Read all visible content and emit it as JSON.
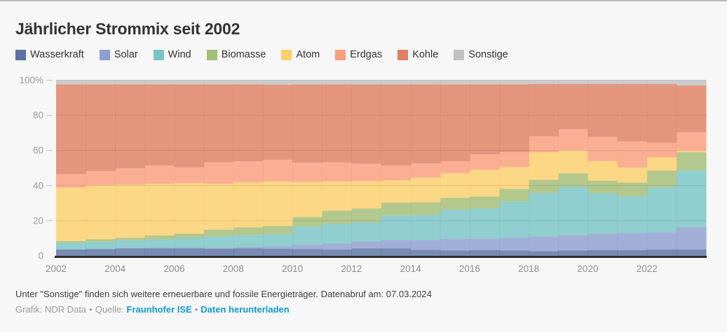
{
  "header": {
    "title": "Jährlicher Strommix seit 2002"
  },
  "footer": {
    "note": "Unter \"Sonstige\" finden sich weitere erneuerbare und fossile Energieträger. Datenabruf am: 07.03.2024",
    "credit": "Grafik: NDR Data",
    "sep": "•",
    "source_label": "Quelle:",
    "source_link": "Fraunhofer ISE",
    "download_link": "Daten herunterladen"
  },
  "colors": {
    "accent_link": "#0f99d4",
    "axis_line": "#2d2d2d",
    "grid": "#d8d8d8",
    "tick_text": "#9b9b9b",
    "card_bg": "#f7f7f7"
  },
  "chart_data": {
    "type": "area",
    "subtype": "stacked-step-100percent",
    "x": [
      2002,
      2003,
      2004,
      2005,
      2006,
      2007,
      2008,
      2009,
      2010,
      2011,
      2012,
      2013,
      2014,
      2015,
      2016,
      2017,
      2018,
      2019,
      2020,
      2021,
      2022,
      2023
    ],
    "x_ticks": [
      "2002",
      "2004",
      "2006",
      "2008",
      "2010",
      "2012",
      "2014",
      "2016",
      "2018",
      "2020",
      "2022"
    ],
    "y_ticks": [
      {
        "value": 100,
        "label": "100%"
      },
      {
        "value": 80,
        "label": "80"
      },
      {
        "value": 60,
        "label": "60"
      },
      {
        "value": 40,
        "label": "40"
      },
      {
        "value": 20,
        "label": "20"
      },
      {
        "value": 0,
        "label": "0"
      }
    ],
    "ylim": [
      0,
      100
    ],
    "unit": "%",
    "grid": true,
    "legend_position": "top",
    "series": [
      {
        "name": "Wasserkraft",
        "color": "#5a73a4",
        "values": [
          3.6,
          3.9,
          4.2,
          4.3,
          4.2,
          4.1,
          4.2,
          4.1,
          3.8,
          3.7,
          4.3,
          4.3,
          3.4,
          3.0,
          3.3,
          3.0,
          2.6,
          3.0,
          3.3,
          3.3,
          3.7,
          3.7
        ]
      },
      {
        "name": "Solar",
        "color": "#8d9fd0",
        "values": [
          0.1,
          0.1,
          0.2,
          0.3,
          0.4,
          0.6,
          0.8,
          1.4,
          2.7,
          3.3,
          4.0,
          4.7,
          5.6,
          6.7,
          6.6,
          7.3,
          8.4,
          8.9,
          9.3,
          9.7,
          9.7,
          12.6
        ]
      },
      {
        "name": "Wind",
        "color": "#79c5c6",
        "values": [
          3.7,
          4.1,
          4.5,
          4.7,
          5.6,
          6.4,
          6.7,
          6.8,
          10.2,
          11.3,
          10.7,
          14.0,
          14.2,
          16.6,
          17.1,
          20.7,
          24.7,
          27.4,
          23.1,
          20.9,
          25.6,
          32.3
        ]
      },
      {
        "name": "Biomasse",
        "color": "#a2bd74",
        "values": [
          1.1,
          1.3,
          1.4,
          2.3,
          2.4,
          3.8,
          4.5,
          4.8,
          5.4,
          7.4,
          8.0,
          7.3,
          7.3,
          6.7,
          6.7,
          7.1,
          7.6,
          7.7,
          7.0,
          7.8,
          9.6,
          10.4
        ]
      },
      {
        "name": "Atom",
        "color": "#fccf6b",
        "values": [
          30.3,
          30.8,
          30.2,
          29.4,
          28.8,
          26.1,
          25.6,
          25.2,
          19.9,
          16.6,
          15.5,
          12.7,
          14.0,
          14.0,
          15.3,
          12.5,
          15.7,
          13.1,
          11.2,
          8.6,
          7.5,
          1.1
        ]
      },
      {
        "name": "Erdgas",
        "color": "#fa9f7d",
        "values": [
          7.7,
          8.1,
          9.3,
          10.5,
          9.0,
          12.3,
          12.0,
          12.3,
          11.0,
          11.0,
          10.0,
          8.5,
          8.1,
          6.9,
          8.9,
          8.4,
          9.1,
          12.0,
          13.8,
          14.7,
          8.2,
          10.2
        ]
      },
      {
        "name": "Kohle",
        "color": "#df8061",
        "values": [
          51.2,
          49.4,
          47.9,
          46.2,
          47.3,
          44.4,
          43.9,
          42.9,
          44.6,
          44.3,
          45.1,
          46.1,
          45.1,
          43.8,
          39.8,
          38.7,
          29.8,
          25.8,
          30.2,
          32.9,
          33.6,
          26.7
        ]
      },
      {
        "name": "Sonstige",
        "color": "#c1c1c1",
        "values": [
          2.3,
          2.3,
          2.3,
          2.3,
          2.3,
          2.3,
          2.3,
          2.5,
          2.4,
          2.4,
          2.4,
          2.4,
          2.3,
          2.3,
          2.3,
          2.3,
          2.1,
          2.1,
          2.1,
          2.1,
          2.1,
          3.0
        ]
      }
    ]
  }
}
